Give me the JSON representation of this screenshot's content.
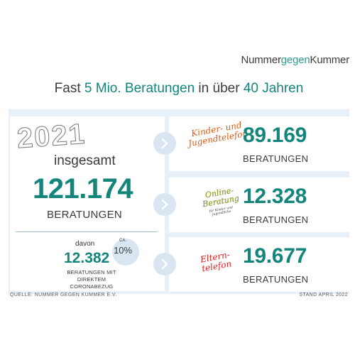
{
  "brand": {
    "part1": "Nummer",
    "part2": "gegen",
    "part3": "Kummer"
  },
  "headline": {
    "t1": "Fast ",
    "t2": "5 Mio. Beratungen",
    "t3": " in über ",
    "t4": "40 Jahren"
  },
  "summary": {
    "year": "2021",
    "insgesamt": "insgesamt",
    "total": "121.174",
    "total_label": "BERATUNGEN",
    "davon": "davon",
    "corona_value": "12.382",
    "ca": "CA.",
    "percent": "10%",
    "corona_label": "BERATUNGEN MIT DIREKTEM CORONABEZUG"
  },
  "services": [
    {
      "name": "Kinder- und Jugendtelefon",
      "value": "89.169",
      "label": "BERATUNGEN",
      "color": "#e05a12"
    },
    {
      "name": "Online-Beratung",
      "subtext": "für Kinder und Jugendliche",
      "value": "12.328",
      "label": "BERATUNGEN",
      "color": "#a7b800"
    },
    {
      "name": "Eltern-telefon",
      "value": "19.677",
      "label": "BERATUNGEN",
      "color": "#d82020"
    }
  ],
  "footer": {
    "source": "QUELLE: NUMMER GEGEN KUMMER E.V.",
    "date": "STAND APRIL 2022"
  },
  "colors": {
    "teal": "#14857b",
    "panel": "#e7f0f8",
    "chevron_bg": "#d9e5f1"
  }
}
